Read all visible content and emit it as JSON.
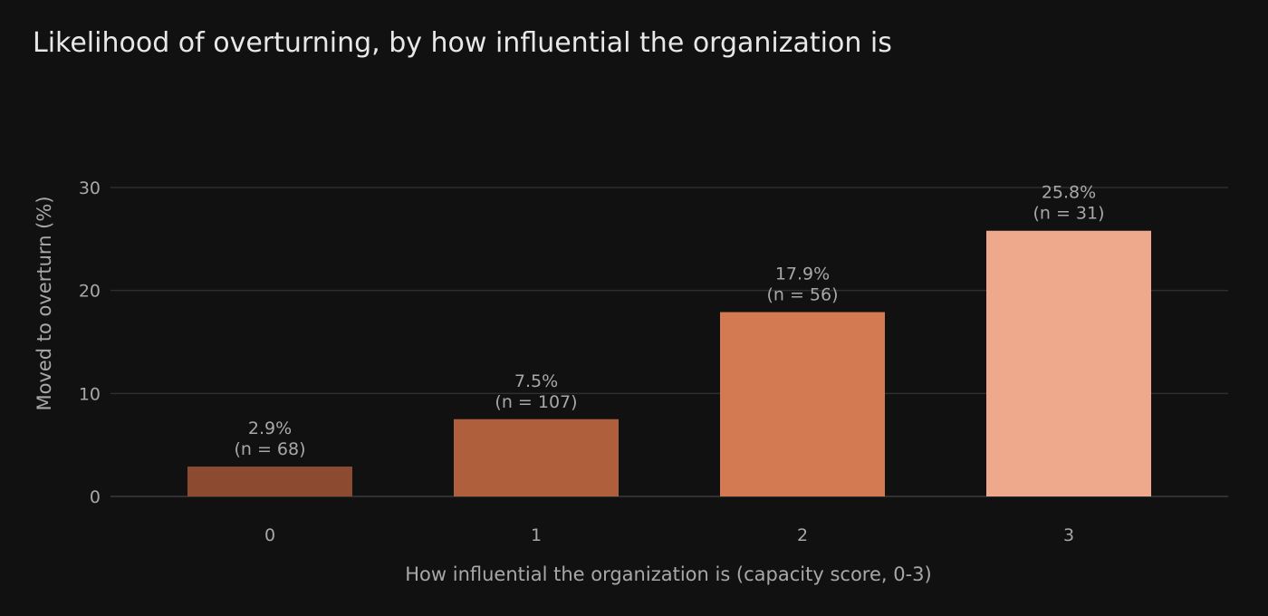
{
  "chart_data": {
    "type": "bar",
    "title": "Likelihood of overturning, by how influential the organization is",
    "xlabel": "How influential the organization is (capacity score, 0-3)",
    "ylabel": "Moved to overturn (%)",
    "categories": [
      "0",
      "1",
      "2",
      "3"
    ],
    "values": [
      2.9,
      7.5,
      17.9,
      25.8
    ],
    "value_labels": [
      "2.9%",
      "7.5%",
      "17.9%",
      "25.8%"
    ],
    "n_labels": [
      "(n = 68)",
      "(n = 107)",
      "(n = 56)",
      "(n = 31)"
    ],
    "bar_colors": [
      "#8c4a30",
      "#b05f3c",
      "#d47a52",
      "#eea98c"
    ],
    "ylim": [
      0,
      30
    ],
    "yticks": [
      0,
      10,
      20,
      30
    ],
    "grid": true,
    "legend": "none"
  }
}
